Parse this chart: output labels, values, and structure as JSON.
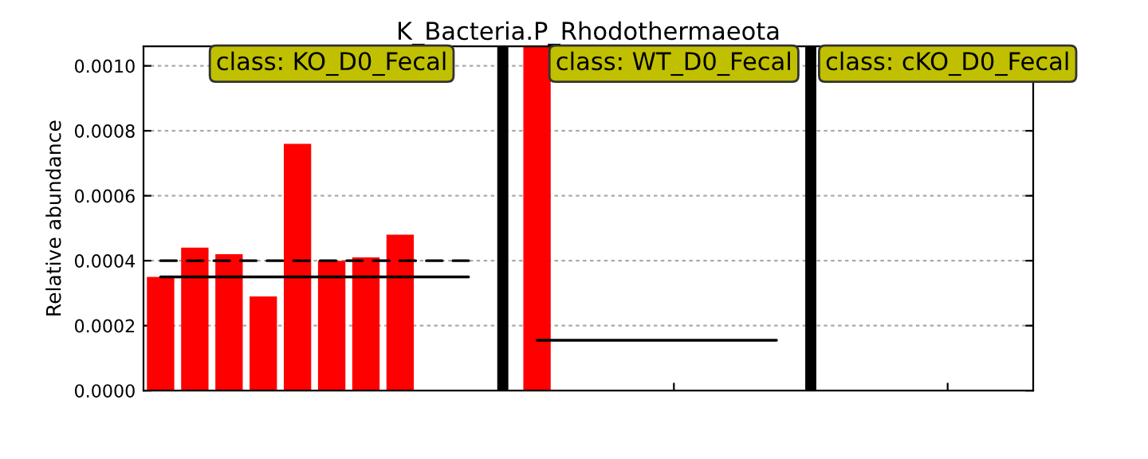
{
  "chart_data": {
    "type": "bar",
    "title": "K_Bacteria.P_Rhodothermaeota",
    "ylabel": "Relative abundance",
    "categories": [
      null,
      null,
      null,
      null,
      null,
      null,
      null,
      null,
      null,
      null,
      null,
      null,
      null,
      null,
      null,
      null,
      null,
      null,
      null,
      null,
      null,
      null,
      null,
      null,
      null,
      null
    ],
    "series": [
      {
        "color": "#ff0000",
        "values": [
          0.00035,
          0.00044,
          0.00042,
          0.00029,
          0.00076,
          0.0004,
          0.00041,
          0.00048,
          0,
          0,
          null,
          0.00106,
          0,
          0,
          0,
          0,
          0,
          0,
          0,
          null,
          0,
          0,
          0,
          0,
          0,
          0
        ]
      },
      {
        "type": "line",
        "color": "#000000",
        "line_style": "solid",
        "values": [
          0.00035,
          0.00035,
          0.00035,
          0.00035,
          0.00035,
          0.00035,
          0.00035,
          0.00035,
          0.00035,
          0.00035,
          null,
          null,
          null,
          null,
          null,
          null,
          null,
          null,
          null,
          null,
          null,
          null,
          null,
          null,
          null,
          null
        ]
      },
      {
        "type": "line",
        "color": "#000000",
        "line_style": "dashed",
        "values": [
          0.0004,
          0.0004,
          0.0004,
          0.0004,
          0.0004,
          0.0004,
          0.0004,
          0.0004,
          0.0004,
          0.0004,
          null,
          null,
          null,
          null,
          null,
          null,
          null,
          null,
          null,
          null,
          null,
          null,
          null,
          null,
          null,
          null
        ]
      },
      {
        "type": "line",
        "color": "#000000",
        "line_style": "solid",
        "values": [
          null,
          null,
          null,
          null,
          null,
          null,
          null,
          null,
          null,
          null,
          null,
          0.000155,
          0.000155,
          0.000155,
          0.000155,
          0.000155,
          0.000155,
          0.000155,
          0.000155,
          null,
          null,
          null,
          null,
          null,
          null,
          null
        ]
      }
    ],
    "annotations": [
      "class: KO_D0_Fecal",
      "class: WT_D0_Fecal",
      "class: cKO_D0_Fecal"
    ],
    "ylim": [
      0,
      0.00106
    ],
    "yticks": [
      {
        "value": 0,
        "label": "0.0000"
      },
      {
        "value": 0.0002,
        "label": "0.0002"
      },
      {
        "value": 0.0004,
        "label": "0.0004"
      },
      {
        "value": 0.0006,
        "label": "0.0006"
      },
      {
        "value": 0.0008,
        "label": "0.0008"
      },
      {
        "value": 0.001,
        "label": "0.0010"
      }
    ],
    "grid": "y",
    "marker": "none"
  }
}
